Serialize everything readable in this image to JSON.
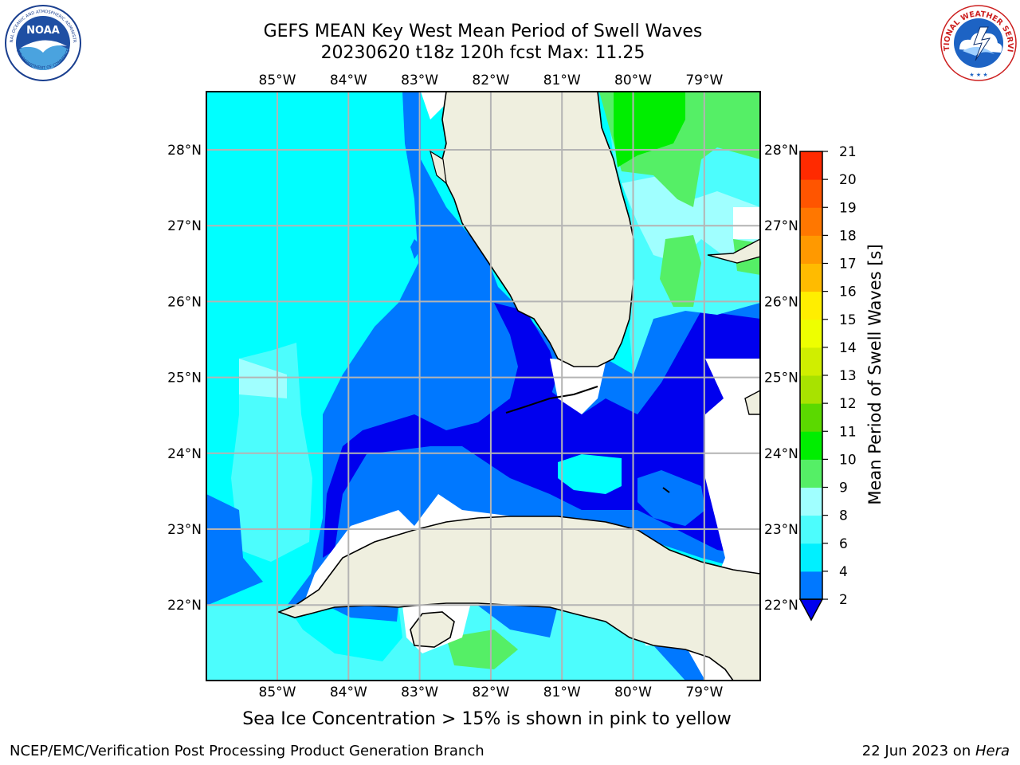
{
  "header": {
    "title_line1": "GEFS MEAN Key West Mean Period of Swell Waves",
    "title_line2": "20230620 t18z 120h fcst   Max: 11.25"
  },
  "logos": {
    "left": "NOAA",
    "left_ring_text": "NATIONAL OCEANIC AND ATMOSPHERIC ADMINISTRATION",
    "left_ring_bottom": "U.S. DEPARTMENT OF COMMERCE",
    "right_ring_text": "NATIONAL WEATHER SERVICE"
  },
  "map": {
    "lon_labels": [
      "85°W",
      "84°W",
      "83°W",
      "82°W",
      "81°W",
      "80°W",
      "79°W"
    ],
    "lat_labels": [
      "28°N",
      "27°N",
      "26°N",
      "25°N",
      "24°N",
      "23°N",
      "22°N"
    ],
    "colors": {
      "land": "#efefdf",
      "c2_4": "#0078ff",
      "c_lt2": "#0000ee",
      "c4_6": "#00ffff",
      "c6_8": "#4cfdfd",
      "c8_9": "#a0ffff",
      "c9_10": "#55ef66",
      "c10_11": "#00ee00"
    }
  },
  "colorbar": {
    "label": "Mean Period of Swell Waves [s]",
    "ticks": [
      "2",
      "4",
      "6",
      "8",
      "9",
      "10",
      "11",
      "12",
      "13",
      "14",
      "15",
      "16",
      "17",
      "18",
      "19",
      "20",
      "21"
    ],
    "colors": [
      "#0078ff",
      "#00f0ff",
      "#4cfdfd",
      "#a0ffff",
      "#55ef66",
      "#00ee00",
      "#5bd900",
      "#a8e200",
      "#d0ee00",
      "#eeff00",
      "#ffee00",
      "#ffbb00",
      "#ff9900",
      "#ff7700",
      "#ff5500",
      "#ff2a00",
      "#ff0000"
    ],
    "extend_color": "#0000ee"
  },
  "note": "Sea Ice Concentration > 15% is shown in pink to yellow",
  "footer": {
    "left": "NCEP/EMC/Verification Post Processing Product Generation Branch",
    "date": "22 Jun 2023 on ",
    "machine": "Hera"
  }
}
